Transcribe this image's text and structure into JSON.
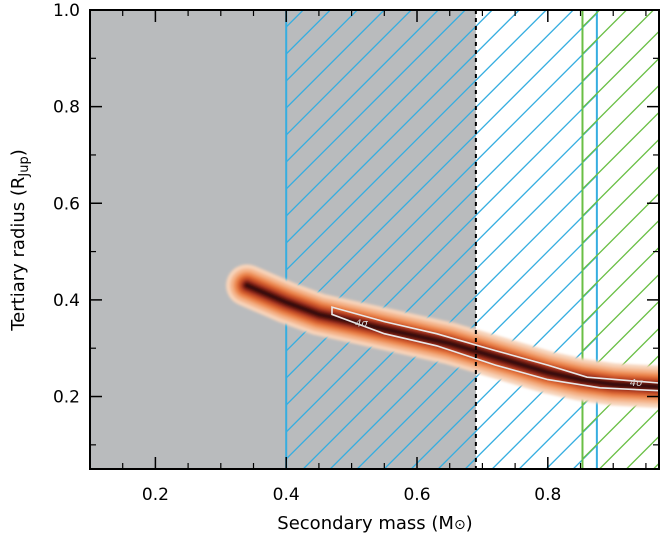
{
  "chart_data": {
    "type": "contour",
    "xlabel": "Secondary mass (M",
    "xlabel_symbol": "⊙",
    "xlabel_close": ")",
    "ylabel": "Tertiary radius (R",
    "ylabel_sub": "Jup",
    "ylabel_close": ")",
    "xlim": [
      0.1,
      0.97
    ],
    "ylim": [
      0.05,
      1.0
    ],
    "x_ticks": [
      {
        "value": 0.2,
        "label": "0.2"
      },
      {
        "value": 0.4,
        "label": "0.4"
      },
      {
        "value": 0.6,
        "label": "0.6"
      },
      {
        "value": 0.8,
        "label": "0.8"
      }
    ],
    "y_ticks": [
      {
        "value": 0.2,
        "label": "0.2"
      },
      {
        "value": 0.4,
        "label": "0.4"
      },
      {
        "value": 0.6,
        "label": "0.6"
      },
      {
        "value": 0.8,
        "label": "0.8"
      },
      {
        "value": 1.0,
        "label": "1.0"
      }
    ],
    "regions": [
      {
        "kind": "shaded",
        "x_range": [
          0.1,
          0.69
        ],
        "color": "#b9bbbd"
      },
      {
        "kind": "hatched",
        "x_range": [
          0.4,
          0.875
        ],
        "color": "#36aee0"
      },
      {
        "kind": "hatched",
        "x_range": [
          0.853,
          0.97
        ],
        "color": "#6abf45"
      }
    ],
    "vertical_line": {
      "x": 0.69,
      "style": "dashed"
    },
    "ridge": [
      {
        "x": 0.34,
        "y": 0.43
      },
      {
        "x": 0.4,
        "y": 0.395
      },
      {
        "x": 0.45,
        "y": 0.37
      },
      {
        "x": 0.5,
        "y": 0.355
      },
      {
        "x": 0.55,
        "y": 0.34
      },
      {
        "x": 0.6,
        "y": 0.325
      },
      {
        "x": 0.65,
        "y": 0.31
      },
      {
        "x": 0.7,
        "y": 0.29
      },
      {
        "x": 0.75,
        "y": 0.27
      },
      {
        "x": 0.8,
        "y": 0.25
      },
      {
        "x": 0.85,
        "y": 0.235
      },
      {
        "x": 0.9,
        "y": 0.225
      },
      {
        "x": 0.97,
        "y": 0.22
      }
    ],
    "contour_levels": [
      "4σ",
      "4σ"
    ],
    "fill_colors": [
      "#f7d3b9",
      "#f4b48a",
      "#ee9058",
      "#df6a35",
      "#c24b27",
      "#93281a",
      "#5e1410",
      "#2e0707"
    ]
  }
}
